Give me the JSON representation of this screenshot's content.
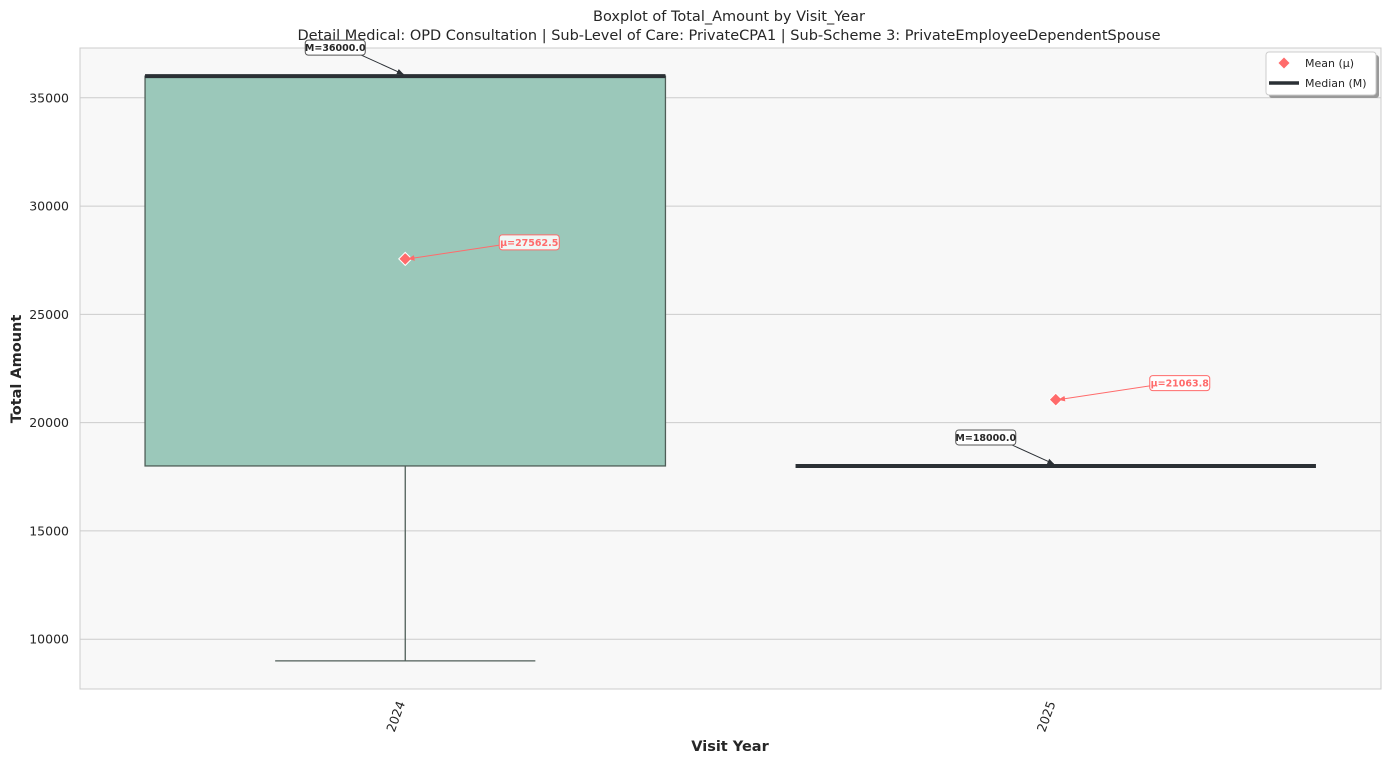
{
  "chart_data": {
    "type": "box",
    "title": "Boxplot of Total_Amount by Visit_Year",
    "subtitle": "Detail Medical: OPD Consultation | Sub-Level of Care: PrivateCPA1 | Sub-Scheme 3: PrivateEmployeeDependentSpouse",
    "xlabel": "Visit Year",
    "ylabel": "Total Amount",
    "categories": [
      "2024",
      "2025"
    ],
    "ylim": [
      7700,
      37300
    ],
    "yticks": [
      10000,
      15000,
      20000,
      25000,
      30000,
      35000
    ],
    "grid": true,
    "legend_position": "top-right",
    "boxes": [
      {
        "category": "2024",
        "whisker_low": 9000,
        "q1": 18000,
        "median": 36000,
        "q3": 36000,
        "whisker_high": 36000,
        "mean": 27562.5,
        "median_label": "M=36000.0",
        "mean_label": "μ=27562.5"
      },
      {
        "category": "2025",
        "whisker_low": 18000,
        "q1": 18000,
        "median": 18000,
        "q3": 18000,
        "whisker_high": 18000,
        "mean": 21063.8,
        "median_label": "M=18000.0",
        "mean_label": "μ=21063.8"
      }
    ],
    "legend": [
      {
        "label": "Mean (μ)",
        "marker": "diamond"
      },
      {
        "label": "Median (M)",
        "marker": "line"
      }
    ],
    "colors": {
      "box_fill": "#9bc8ba",
      "box_edge": "#4f5e58",
      "median": "#2b3035",
      "mean": "#ff6b6b",
      "plot_bg": "#f8f8f8",
      "grid": "#cccccc"
    }
  }
}
